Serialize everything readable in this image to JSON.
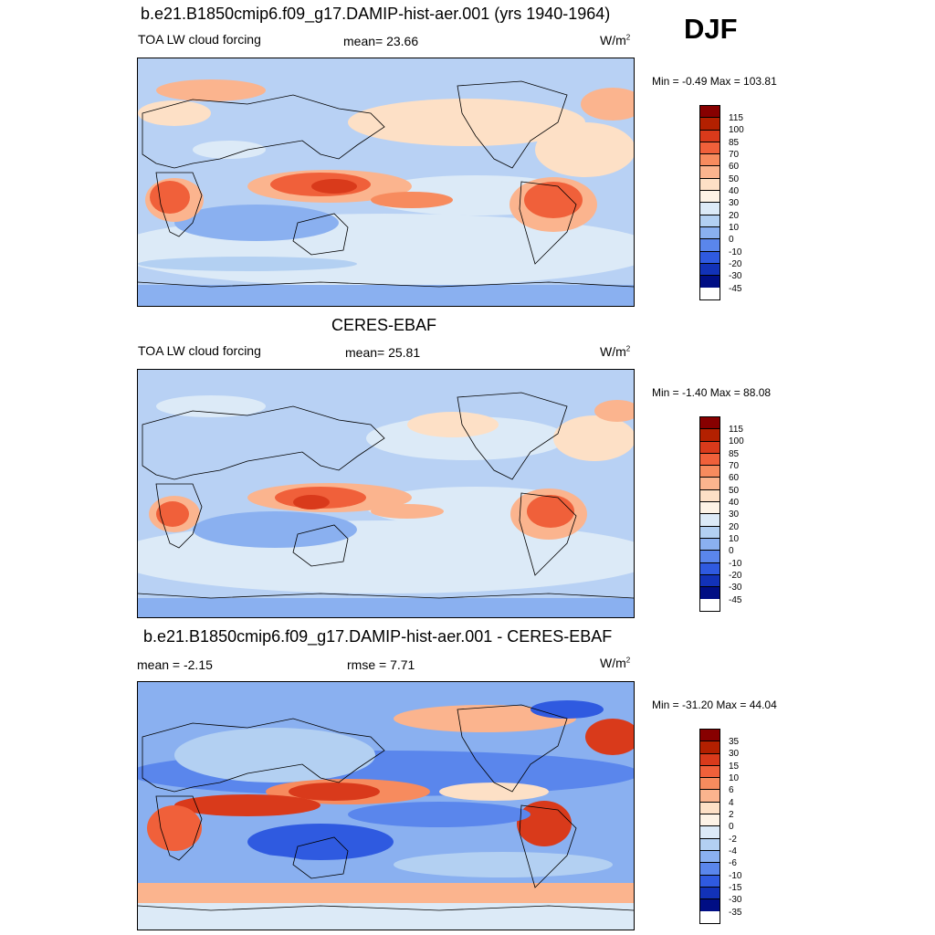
{
  "season": "DJF",
  "panels": [
    {
      "title": "b.e21.B1850cmip6.f09_g17.DAMIP-hist-aer.001 (yrs 1940-1964)",
      "left_label": "TOA LW cloud forcing",
      "center_label": "mean=  23.66",
      "units": "W/m",
      "units_sup": "2",
      "minmax": "Min =  -0.49 Max = 103.81",
      "colorbar_labels": [
        "115",
        "100",
        "85",
        "70",
        "60",
        "50",
        "40",
        "30",
        "20",
        "10",
        "0",
        "-10",
        "-20",
        "-30",
        "-45"
      ]
    },
    {
      "title": "CERES-EBAF",
      "left_label": "TOA LW cloud forcing",
      "center_label": "mean=  25.81",
      "units": "W/m",
      "units_sup": "2",
      "minmax": "Min =  -1.40 Max =  88.08",
      "colorbar_labels": [
        "115",
        "100",
        "85",
        "70",
        "60",
        "50",
        "40",
        "30",
        "20",
        "10",
        "0",
        "-10",
        "-20",
        "-30",
        "-45"
      ]
    },
    {
      "title": "b.e21.B1850cmip6.f09_g17.DAMIP-hist-aer.001 - CERES-EBAF",
      "left_label": "mean =  -2.15",
      "center_label": "rmse =   7.71",
      "units": "W/m",
      "units_sup": "2",
      "minmax": "Min = -31.20 Max =  44.04",
      "colorbar_labels": [
        "35",
        "30",
        "15",
        "10",
        "6",
        "4",
        "2",
        "0",
        "-2",
        "-4",
        "-6",
        "-10",
        "-15",
        "-30",
        "-35"
      ]
    }
  ],
  "colors": {
    "scale": [
      "#870000",
      "#b32000",
      "#d93a1b",
      "#f0603a",
      "#f78b5e",
      "#fbb48e",
      "#fde0c6",
      "#fdf3e6",
      "#dceaf7",
      "#b3d0f2",
      "#8ab0f0",
      "#5a86ec",
      "#2f5ae0",
      "#1232b8",
      "#000e84"
    ],
    "ocean_base": "#b8d1f4",
    "land_line": "#000000"
  }
}
